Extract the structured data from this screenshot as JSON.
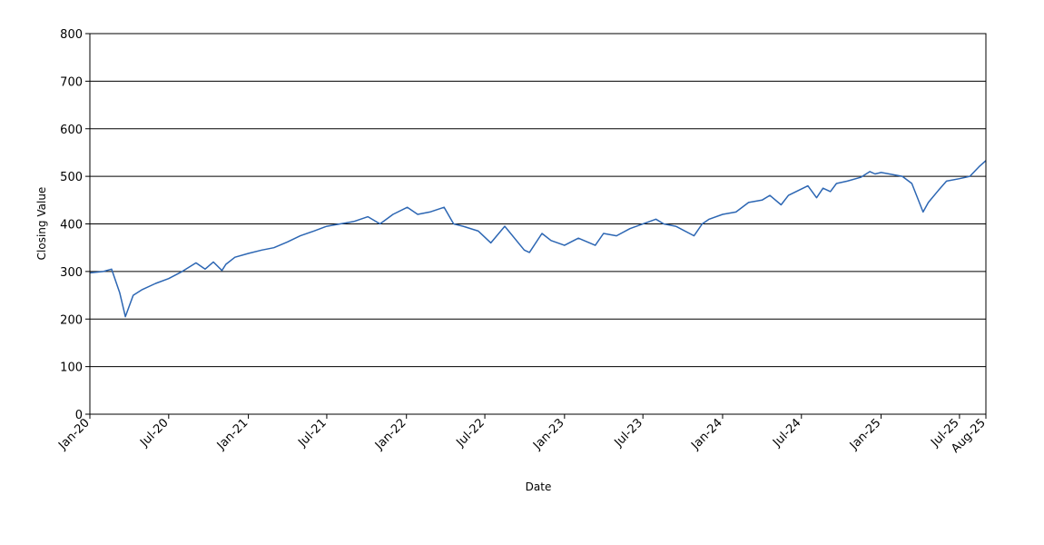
{
  "chart_data": {
    "type": "line",
    "title": "",
    "xlabel": "Date",
    "ylabel": "Closing Value",
    "ylim": [
      0,
      800
    ],
    "yticks": [
      0,
      100,
      200,
      300,
      400,
      500,
      600,
      700,
      800
    ],
    "xlim": [
      "2020-01-01",
      "2025-08-31"
    ],
    "xticks": [
      {
        "date": "2020-01-01",
        "label": "Jan-20"
      },
      {
        "date": "2020-07-01",
        "label": "Jul-20"
      },
      {
        "date": "2021-01-01",
        "label": "Jan-21"
      },
      {
        "date": "2021-07-01",
        "label": "Jul-21"
      },
      {
        "date": "2022-01-01",
        "label": "Jan-22"
      },
      {
        "date": "2022-07-01",
        "label": "Jul-22"
      },
      {
        "date": "2023-01-01",
        "label": "Jan-23"
      },
      {
        "date": "2023-07-01",
        "label": "Jul-23"
      },
      {
        "date": "2024-01-01",
        "label": "Jan-24"
      },
      {
        "date": "2024-07-01",
        "label": "Jul-24"
      },
      {
        "date": "2025-01-01",
        "label": "Jan-25"
      },
      {
        "date": "2025-07-01",
        "label": "Jul-25"
      },
      {
        "date": "2025-08-31",
        "label": "Aug-25"
      }
    ],
    "grid": "horizontal",
    "legend": "none",
    "colors": {
      "line": "#2c66b3",
      "grid": "#000000",
      "axis": "#000000"
    },
    "series": [
      {
        "x": [
          "2020-01-02",
          "2020-02-01",
          "2020-02-20",
          "2020-03-10",
          "2020-03-23",
          "2020-04-10",
          "2020-05-01",
          "2020-06-01",
          "2020-07-01",
          "2020-08-01",
          "2020-09-02",
          "2020-09-23",
          "2020-10-12",
          "2020-11-01",
          "2020-11-10",
          "2020-12-01",
          "2021-01-01",
          "2021-02-01",
          "2021-03-01",
          "2021-04-01",
          "2021-05-01",
          "2021-06-01",
          "2021-07-01",
          "2021-08-01",
          "2021-09-01",
          "2021-10-04",
          "2021-11-01",
          "2021-12-01",
          "2022-01-03",
          "2022-01-27",
          "2022-02-24",
          "2022-03-29",
          "2022-04-20",
          "2022-05-12",
          "2022-06-16",
          "2022-07-15",
          "2022-08-16",
          "2022-09-30",
          "2022-10-12",
          "2022-11-10",
          "2022-12-01",
          "2023-01-01",
          "2023-02-02",
          "2023-03-13",
          "2023-04-01",
          "2023-05-01",
          "2023-06-01",
          "2023-07-31",
          "2023-08-18",
          "2023-09-15",
          "2023-10-27",
          "2023-11-15",
          "2023-12-01",
          "2024-01-01",
          "2024-02-01",
          "2024-03-01",
          "2024-04-01",
          "2024-04-19",
          "2024-05-15",
          "2024-06-01",
          "2024-07-16",
          "2024-08-05",
          "2024-08-20",
          "2024-09-06",
          "2024-09-20",
          "2024-10-15",
          "2024-11-15",
          "2024-12-06",
          "2024-12-18",
          "2025-01-01",
          "2025-02-19",
          "2025-03-13",
          "2025-04-08",
          "2025-04-20",
          "2025-05-13",
          "2025-06-01",
          "2025-07-01",
          "2025-07-25",
          "2025-08-15",
          "2025-08-31"
        ],
        "values": [
          297,
          300,
          305,
          255,
          205,
          250,
          262,
          275,
          285,
          300,
          318,
          305,
          320,
          302,
          315,
          330,
          338,
          345,
          350,
          362,
          375,
          385,
          395,
          400,
          405,
          415,
          400,
          420,
          435,
          420,
          425,
          435,
          400,
          395,
          385,
          360,
          395,
          345,
          340,
          380,
          365,
          355,
          370,
          355,
          380,
          375,
          390,
          410,
          400,
          395,
          375,
          400,
          410,
          420,
          425,
          445,
          450,
          460,
          440,
          460,
          480,
          455,
          475,
          468,
          485,
          490,
          498,
          510,
          505,
          508,
          500,
          485,
          425,
          445,
          470,
          490,
          495,
          500,
          520,
          533
        ]
      }
    ]
  }
}
